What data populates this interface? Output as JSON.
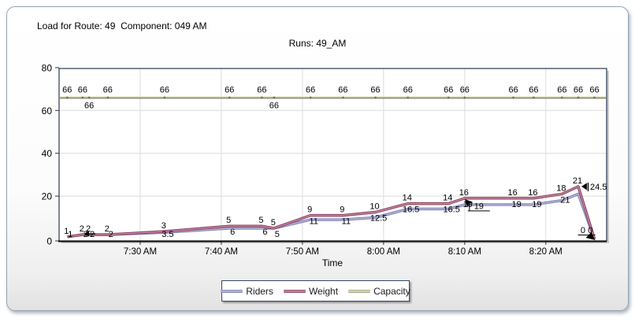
{
  "window": {
    "header": "Load for Route: 49  Component: 049 AM"
  },
  "chart_data": {
    "type": "line",
    "title": "Runs: 49_AM",
    "xlabel": "Time",
    "ylabel": "",
    "ylim": [
      0,
      80
    ],
    "yticks": [
      0,
      20,
      40,
      60,
      80
    ],
    "xticks": [
      "7:30 AM",
      "7:40 AM",
      "7:50 AM",
      "8:00 AM",
      "8:10 AM",
      "8:20 AM"
    ],
    "xtick_minutes_after_720am": [
      10,
      20,
      30,
      40,
      50,
      60
    ],
    "grid": true,
    "legend_position": "bottom",
    "series": [
      {
        "name": "Riders",
        "color": "#7f80b6",
        "highlight": "#bdbddc"
      },
      {
        "name": "Weight",
        "color": "#90405f",
        "highlight": "#c795ab"
      },
      {
        "name": "Capacity",
        "color": "#95957b",
        "highlight": "#e8e8c2"
      }
    ],
    "points": [
      {
        "time": "7:21 AM",
        "t": 1.0,
        "riders": 1,
        "weight": 1,
        "capacity": 66
      },
      {
        "time": "7:23 AM",
        "t": 2.9,
        "riders": 2,
        "weight": 2,
        "capacity": 66
      },
      {
        "time": "7:24 AM",
        "t": 3.7,
        "riders": 2,
        "weight": 2,
        "capacity": 66
      },
      {
        "time": "7:26 AM",
        "t": 6.0,
        "riders": 2,
        "weight": 2,
        "capacity": 66
      },
      {
        "time": "7:33 AM",
        "t": 13.0,
        "riders": 3,
        "weight": 3.5,
        "capacity": 66
      },
      {
        "time": "7:41 AM",
        "t": 21.0,
        "riders": 5,
        "weight": 6,
        "capacity": 66
      },
      {
        "time": "7:45 AM",
        "t": 25.0,
        "riders": 5,
        "weight": 6,
        "capacity": 66
      },
      {
        "time": "7:47 AM",
        "t": 26.5,
        "riders": 5,
        "weight": 5,
        "capacity": 66
      },
      {
        "time": "7:51 AM",
        "t": 31.0,
        "riders": 9,
        "weight": 11,
        "capacity": 66
      },
      {
        "time": "7:55 AM",
        "t": 35.0,
        "riders": 9,
        "weight": 11,
        "capacity": 66
      },
      {
        "time": "7:59 AM",
        "t": 39.0,
        "riders": 10,
        "weight": 12.5,
        "capacity": 66
      },
      {
        "time": "8:03 AM",
        "t": 43.0,
        "riders": 14,
        "weight": 16.5,
        "capacity": 66
      },
      {
        "time": "8:08 AM",
        "t": 48.0,
        "riders": 14,
        "weight": 16.5,
        "capacity": 66
      },
      {
        "time": "8:10 AM",
        "t": 50.0,
        "riders": 16,
        "weight": 19,
        "capacity": 66
      },
      {
        "time": "8:16 AM",
        "t": 56.0,
        "riders": 16,
        "weight": 19,
        "capacity": 66
      },
      {
        "time": "8:18 AM",
        "t": 58.5,
        "riders": 16,
        "weight": 19,
        "capacity": 66
      },
      {
        "time": "8:22 AM",
        "t": 62.0,
        "riders": 18,
        "weight": 21,
        "capacity": 66
      },
      {
        "time": "8:24 AM",
        "t": 64.0,
        "riders": 21,
        "weight": 24.5,
        "capacity": 66
      },
      {
        "time": "8:26 AM",
        "t": 66.0,
        "riders": 0,
        "weight": 0,
        "capacity": 66
      }
    ],
    "capacity_value": 66,
    "capacity_label_below_indices": [
      2,
      7
    ],
    "annotations": [
      {
        "kind": "arrow-left",
        "t": 3.7,
        "value": 2,
        "text": ""
      },
      {
        "kind": "cursor-callout",
        "t": 50.0,
        "value": 19,
        "text": "19"
      },
      {
        "kind": "peak-callout",
        "t": 64.0,
        "value": 24.5,
        "text": "24.5"
      },
      {
        "kind": "end-marker",
        "t": 66.0,
        "value": 0,
        "text": "0 0"
      }
    ]
  }
}
